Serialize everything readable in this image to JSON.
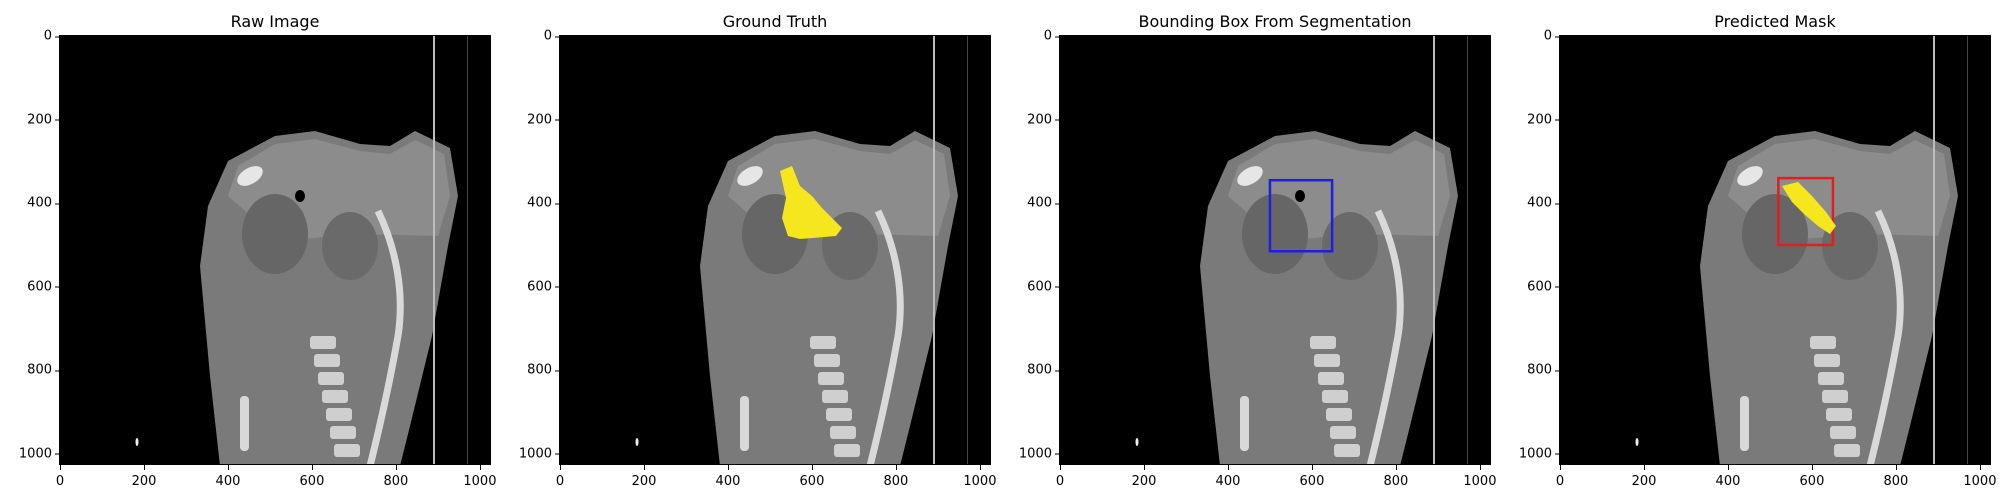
{
  "figure": {
    "panels": [
      {
        "title": "Raw Image",
        "overlay": "none"
      },
      {
        "title": "Ground Truth",
        "overlay": "ground-truth-mask",
        "overlay_color": "#f5e61e"
      },
      {
        "title": "Bounding Box From Segmentation",
        "overlay": "bounding-box",
        "box_color": "#1f1fe0",
        "box": {
          "x0": 500,
          "y0": 345,
          "x1": 648,
          "y1": 515
        }
      },
      {
        "title": "Predicted Mask",
        "overlay": "bounding-box-and-mask",
        "box_color": "#e01f1f",
        "overlay_color": "#f5e61e",
        "box": {
          "x0": 520,
          "y0": 340,
          "x1": 650,
          "y1": 500
        }
      }
    ],
    "y_ticks": [
      "0",
      "200",
      "400",
      "600",
      "800",
      "1000"
    ],
    "x_ticks": [
      "0",
      "200",
      "400",
      "600",
      "800",
      "1000"
    ],
    "image_extent": [
      0,
      1024
    ]
  }
}
